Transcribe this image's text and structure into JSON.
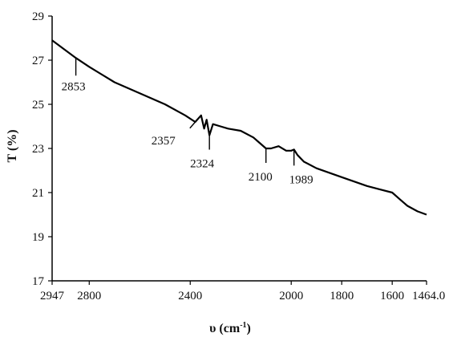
{
  "chart_data": {
    "type": "line",
    "title": "",
    "xlabel": "υ (cm",
    "xlabel_superscript": "-1",
    "xlabel_close": ")",
    "ylabel": "T (%)",
    "x_reversed": true,
    "xlim": [
      2947,
      1464
    ],
    "ylim": [
      17,
      29
    ],
    "x_ticks": [
      2947,
      2800,
      2400,
      2000,
      1800,
      1600,
      1464
    ],
    "x_tick_labels": [
      "2947",
      "2800",
      "2400",
      "2000",
      "1800",
      "1600",
      "1464.0"
    ],
    "y_ticks": [
      17,
      19,
      21,
      23,
      25,
      27,
      29
    ],
    "y_tick_labels": [
      "17",
      "19",
      "21",
      "23",
      "25",
      "27",
      "29"
    ],
    "grid": false,
    "series": [
      {
        "x": [
          2947,
          2900,
          2853,
          2800,
          2700,
          2600,
          2500,
          2420,
          2380,
          2357,
          2345,
          2335,
          2324,
          2310,
          2280,
          2250,
          2200,
          2150,
          2120,
          2100,
          2080,
          2050,
          2020,
          2000,
          1989,
          1975,
          1950,
          1900,
          1800,
          1700,
          1650,
          1600,
          1570,
          1540,
          1500,
          1464
        ],
        "y": [
          27.9,
          27.5,
          27.1,
          26.7,
          26.0,
          25.5,
          25.0,
          24.5,
          24.2,
          24.5,
          23.9,
          24.3,
          23.6,
          24.1,
          24.0,
          23.9,
          23.8,
          23.5,
          23.2,
          23.0,
          23.0,
          23.1,
          22.9,
          22.9,
          22.95,
          22.7,
          22.4,
          22.1,
          21.7,
          21.3,
          21.15,
          21.0,
          20.7,
          20.4,
          20.15,
          20.0
        ]
      }
    ],
    "annotations": [
      {
        "label": "2853",
        "x": 2853,
        "y": 27.1
      },
      {
        "label": "2357",
        "x": 2357,
        "y": 24.5
      },
      {
        "label": "2324",
        "x": 2324,
        "y": 23.6
      },
      {
        "label": "2100",
        "x": 2100,
        "y": 23.0
      },
      {
        "label": "1989",
        "x": 1989,
        "y": 22.95
      }
    ]
  }
}
